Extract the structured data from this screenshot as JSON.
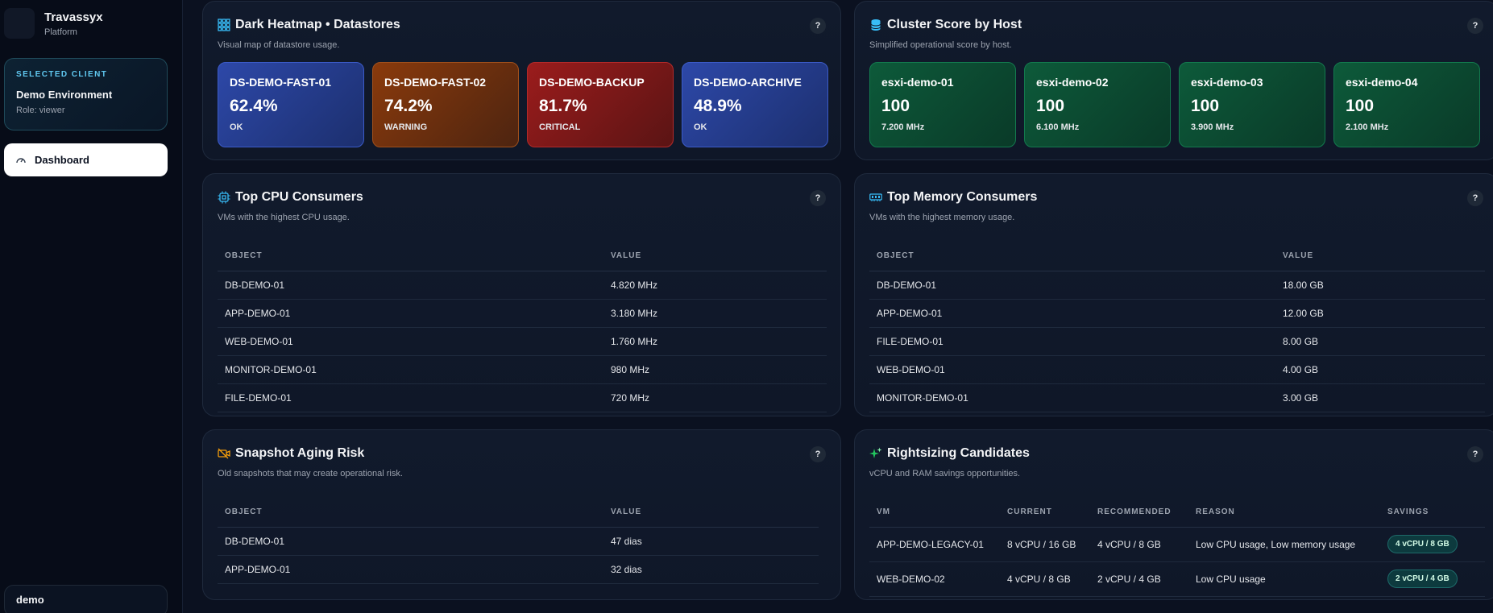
{
  "sidebar": {
    "brand_name": "Travassyx",
    "brand_sub": "Platform",
    "client_label": "SELECTED CLIENT",
    "client_name": "Demo Environment",
    "client_role": "Role: viewer",
    "nav_dashboard": "Dashboard",
    "user": "demo"
  },
  "heatmap": {
    "title": "Dark Heatmap • Datastores",
    "subtitle": "Visual map of datastore usage.",
    "help": "?",
    "tiles": [
      {
        "name": "DS-DEMO-FAST-01",
        "value": "62.4%",
        "status": "OK",
        "color": "blue"
      },
      {
        "name": "DS-DEMO-FAST-02",
        "value": "74.2%",
        "status": "WARNING",
        "color": "orange"
      },
      {
        "name": "DS-DEMO-BACKUP",
        "value": "81.7%",
        "status": "CRITICAL",
        "color": "red"
      },
      {
        "name": "DS-DEMO-ARCHIVE",
        "value": "48.9%",
        "status": "OK",
        "color": "blue"
      }
    ]
  },
  "cluster": {
    "title": "Cluster Score by Host",
    "subtitle": "Simplified operational score by host.",
    "help": "?",
    "tiles": [
      {
        "name": "esxi-demo-01",
        "value": "100",
        "status": "7.200 MHz"
      },
      {
        "name": "esxi-demo-02",
        "value": "100",
        "status": "6.100 MHz"
      },
      {
        "name": "esxi-demo-03",
        "value": "100",
        "status": "3.900 MHz"
      },
      {
        "name": "esxi-demo-04",
        "value": "100",
        "status": "2.100 MHz"
      }
    ]
  },
  "cpu": {
    "title": "Top CPU Consumers",
    "subtitle": "VMs with the highest CPU usage.",
    "help": "?",
    "headers": [
      "OBJECT",
      "VALUE"
    ],
    "rows": [
      [
        "DB-DEMO-01",
        "4.820 MHz"
      ],
      [
        "APP-DEMO-01",
        "3.180 MHz"
      ],
      [
        "WEB-DEMO-01",
        "1.760 MHz"
      ],
      [
        "MONITOR-DEMO-01",
        "980 MHz"
      ],
      [
        "FILE-DEMO-01",
        "720 MHz"
      ]
    ]
  },
  "memory": {
    "title": "Top Memory Consumers",
    "subtitle": "VMs with the highest memory usage.",
    "help": "?",
    "headers": [
      "OBJECT",
      "VALUE"
    ],
    "rows": [
      [
        "DB-DEMO-01",
        "18.00 GB"
      ],
      [
        "APP-DEMO-01",
        "12.00 GB"
      ],
      [
        "FILE-DEMO-01",
        "8.00 GB"
      ],
      [
        "WEB-DEMO-01",
        "4.00 GB"
      ],
      [
        "MONITOR-DEMO-01",
        "3.00 GB"
      ]
    ]
  },
  "snapshot": {
    "title": "Snapshot Aging Risk",
    "subtitle": "Old snapshots that may create operational risk.",
    "help": "?",
    "headers": [
      "OBJECT",
      "VALUE"
    ],
    "rows": [
      [
        "DB-DEMO-01",
        "47 dias"
      ],
      [
        "APP-DEMO-01",
        "32 dias"
      ]
    ]
  },
  "rightsizing": {
    "title": "Rightsizing Candidates",
    "subtitle": "vCPU and RAM savings opportunities.",
    "help": "?",
    "headers": [
      "VM",
      "CURRENT",
      "RECOMMENDED",
      "REASON",
      "SAVINGS"
    ],
    "rows": [
      [
        "APP-DEMO-LEGACY-01",
        "8 vCPU / 16 GB",
        "4 vCPU / 8 GB",
        "Low CPU usage, Low memory usage",
        "4 vCPU / 8 GB"
      ],
      [
        "WEB-DEMO-02",
        "4 vCPU / 8 GB",
        "2 vCPU / 4 GB",
        "Low CPU usage",
        "2 vCPU / 4 GB"
      ]
    ]
  }
}
